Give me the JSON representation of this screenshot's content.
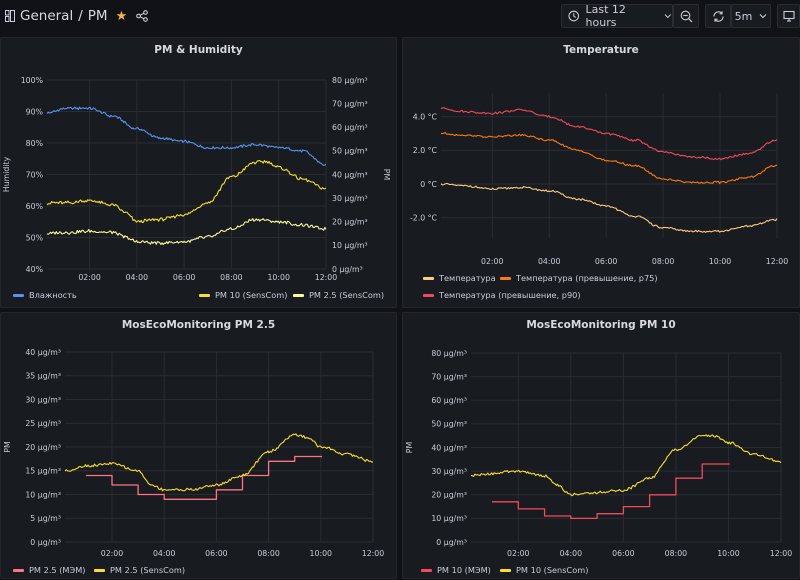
{
  "header": {
    "folder": "General",
    "separator": "/",
    "dashboard": "PM",
    "time_range": "Last 12 hours",
    "refresh_interval": "5m",
    "icons": {
      "folder": "dashboards-grid-icon",
      "favorite": "star-icon",
      "share": "share-icon",
      "time": "clock-icon",
      "zoom": "zoom-out-icon",
      "refresh": "refresh-icon",
      "dropdown": "chevron-down-icon",
      "tv": "tv-mode-icon"
    }
  },
  "panels": {
    "pm_humidity": {
      "title": "PM & Humidity",
      "legend": [
        "Влажность",
        "PM 10 (SensCom)",
        "PM 2.5 (SensCom)"
      ]
    },
    "temperature": {
      "title": "Temperature",
      "legend": [
        "Температура",
        "Температура (превышение, p75)",
        "Температура (превышение, p90)"
      ]
    },
    "mos_pm25": {
      "title": "MosEcoMonitoring PM 2.5",
      "legend": [
        "PM 2.5 (МЭМ)",
        "PM 2.5 (SensCom)"
      ]
    },
    "mos_pm10": {
      "title": "MosEcoMonitoring PM 10",
      "legend": [
        "PM 10 (МЭМ)",
        "PM 10 (SensCom)"
      ]
    }
  },
  "colors": {
    "background": "#111217",
    "panel": "#181b1f",
    "blue": "#5794f2",
    "yellow": "#fade2a",
    "light_yellow": "#fff899",
    "orange": "#ff780a",
    "red": "#f2495c",
    "pink": "#ff7383",
    "light_orange": "#ffcb7d",
    "pm_red": "#f2495c"
  },
  "chart_data": [
    {
      "type": "line",
      "title": "PM & Humidity",
      "x_ticks": [
        "02:00",
        "04:00",
        "06:00",
        "08:00",
        "10:00",
        "12:00"
      ],
      "x_range": [
        0.2,
        12.0
      ],
      "y_left": {
        "label": "Humidity",
        "ticks": [
          "40%",
          "50%",
          "60%",
          "70%",
          "80%",
          "90%",
          "100%"
        ],
        "range": [
          40,
          100
        ]
      },
      "y_right": {
        "label": "PM",
        "ticks": [
          "0 µg/m³",
          "10 µg/m³",
          "20 µg/m³",
          "30 µg/m³",
          "40 µg/m³",
          "50 µg/m³",
          "60 µg/m³",
          "70 µg/m³",
          "80 µg/m³"
        ],
        "range": [
          0,
          80
        ]
      },
      "grid": true,
      "legend_position": "bottom",
      "series": [
        {
          "name": "Влажность",
          "axis": "left",
          "color": "#5794f2",
          "x": [
            0.2,
            1,
            2,
            3,
            4,
            5,
            6,
            7,
            8,
            9,
            10,
            11,
            12
          ],
          "y": [
            89.5,
            91,
            91,
            88.5,
            84.5,
            81.5,
            80.5,
            78.5,
            78.5,
            79.5,
            78.5,
            77.5,
            73
          ]
        },
        {
          "name": "PM 10 (SensCom)",
          "axis": "right",
          "color": "#fade2a",
          "x": [
            0.2,
            1,
            2,
            3,
            3.5,
            4,
            5,
            6,
            7,
            8,
            9,
            9.5,
            10,
            11,
            12
          ],
          "y": [
            28,
            28,
            29,
            27,
            24,
            20,
            21,
            23,
            28,
            39,
            45,
            45.5,
            43,
            38,
            34
          ]
        },
        {
          "name": "PM 2.5 (SensCom)",
          "axis": "right",
          "color": "#fff899",
          "x": [
            0.2,
            1,
            2,
            3,
            3.5,
            4,
            5,
            6,
            7,
            8,
            9,
            10,
            11,
            12
          ],
          "y": [
            15,
            15.5,
            16,
            15.5,
            13.5,
            11.5,
            11,
            11.5,
            13.5,
            17,
            21,
            20,
            18.5,
            17
          ]
        }
      ]
    },
    {
      "type": "line",
      "title": "Temperature",
      "x_ticks": [
        "02:00",
        "04:00",
        "06:00",
        "08:00",
        "10:00",
        "12:00"
      ],
      "x_range": [
        0.2,
        12.0
      ],
      "y": {
        "ticks": [
          "-2.0 °C",
          "0 °C",
          "2.0 °C",
          "4.0 °C"
        ],
        "range": [
          -3.2,
          5.4
        ]
      },
      "grid": true,
      "legend_position": "bottom",
      "series": [
        {
          "name": "Температура",
          "color": "#ffcb7d",
          "x": [
            0.2,
            1,
            2,
            3,
            4,
            5,
            6,
            7,
            8,
            9,
            10,
            11,
            12
          ],
          "y": [
            0,
            -0.1,
            -0.3,
            -0.2,
            -0.4,
            -0.9,
            -1.3,
            -1.9,
            -2.6,
            -2.8,
            -2.8,
            -2.5,
            -2.1
          ]
        },
        {
          "name": "Температура (превышение, p75)",
          "color": "#ff780a",
          "x": [
            0.2,
            1,
            2,
            3,
            4,
            5,
            6,
            7,
            8,
            9,
            10,
            11,
            12
          ],
          "y": [
            3.0,
            2.9,
            2.8,
            2.9,
            2.6,
            2.0,
            1.4,
            1.1,
            0.3,
            0.1,
            0.1,
            0.4,
            1.1
          ]
        },
        {
          "name": "Температура (превышение, p90)",
          "color": "#f2495c",
          "x": [
            0.2,
            1,
            2,
            3,
            4,
            5,
            6,
            7,
            8,
            9,
            10,
            11,
            12
          ],
          "y": [
            4.5,
            4.3,
            4.2,
            4.4,
            4.0,
            3.4,
            3.0,
            2.6,
            1.9,
            1.6,
            1.5,
            1.8,
            2.6
          ]
        }
      ]
    },
    {
      "type": "line",
      "title": "MosEcoMonitoring PM 2.5",
      "x_ticks": [
        "02:00",
        "04:00",
        "06:00",
        "08:00",
        "10:00",
        "12:00"
      ],
      "x_range": [
        0.2,
        12.0
      ],
      "y": {
        "label": "PM",
        "ticks": [
          "0 µg/m³",
          "5 µg/m³",
          "10 µg/m³",
          "15 µg/m³",
          "20 µg/m³",
          "25 µg/m³",
          "30 µg/m³",
          "35 µg/m³",
          "40 µg/m³"
        ],
        "range": [
          0,
          40
        ]
      },
      "grid": true,
      "legend_position": "bottom",
      "series": [
        {
          "name": "PM 2.5 (МЭМ)",
          "color": "#ff7383",
          "step": true,
          "x": [
            1,
            2,
            3,
            4,
            5,
            6,
            7,
            8,
            9,
            10
          ],
          "y": [
            14,
            12,
            10,
            9,
            9,
            11,
            14,
            17,
            18,
            18
          ]
        },
        {
          "name": "PM 2.5 (SensCom)",
          "color": "#fade2a",
          "x": [
            0.2,
            1,
            2,
            3,
            3.5,
            4,
            5,
            6,
            7,
            8,
            9,
            9.5,
            10,
            11,
            12
          ],
          "y": [
            15,
            16,
            16.5,
            15,
            12,
            11,
            11,
            12,
            14,
            19,
            22.5,
            22,
            20,
            18.5,
            17
          ]
        }
      ]
    },
    {
      "type": "line",
      "title": "MosEcoMonitoring PM 10",
      "x_ticks": [
        "02:00",
        "04:00",
        "06:00",
        "08:00",
        "10:00",
        "12:00"
      ],
      "x_range": [
        0.2,
        12.0
      ],
      "y": {
        "label": "PM",
        "ticks": [
          "0 µg/m³",
          "10 µg/m³",
          "20 µg/m³",
          "30 µg/m³",
          "40 µg/m³",
          "50 µg/m³",
          "60 µg/m³",
          "70 µg/m³",
          "80 µg/m³"
        ],
        "range": [
          0,
          80
        ]
      },
      "grid": true,
      "legend_position": "bottom",
      "series": [
        {
          "name": "PM 10 (МЭМ)",
          "color": "#f2495c",
          "step": true,
          "x": [
            1,
            2,
            3,
            4,
            5,
            6,
            7,
            8,
            9,
            10
          ],
          "y": [
            17,
            14,
            11,
            10,
            12,
            15,
            20,
            27,
            33,
            33
          ]
        },
        {
          "name": "PM 10 (SensCom)",
          "color": "#fade2a",
          "x": [
            0.2,
            1,
            2,
            3,
            3.5,
            4,
            5,
            6,
            7,
            8,
            9,
            9.5,
            10,
            11,
            12
          ],
          "y": [
            28,
            29,
            30,
            28,
            24,
            20,
            21,
            22,
            27,
            39,
            45,
            45,
            42,
            37,
            34
          ]
        }
      ]
    }
  ]
}
